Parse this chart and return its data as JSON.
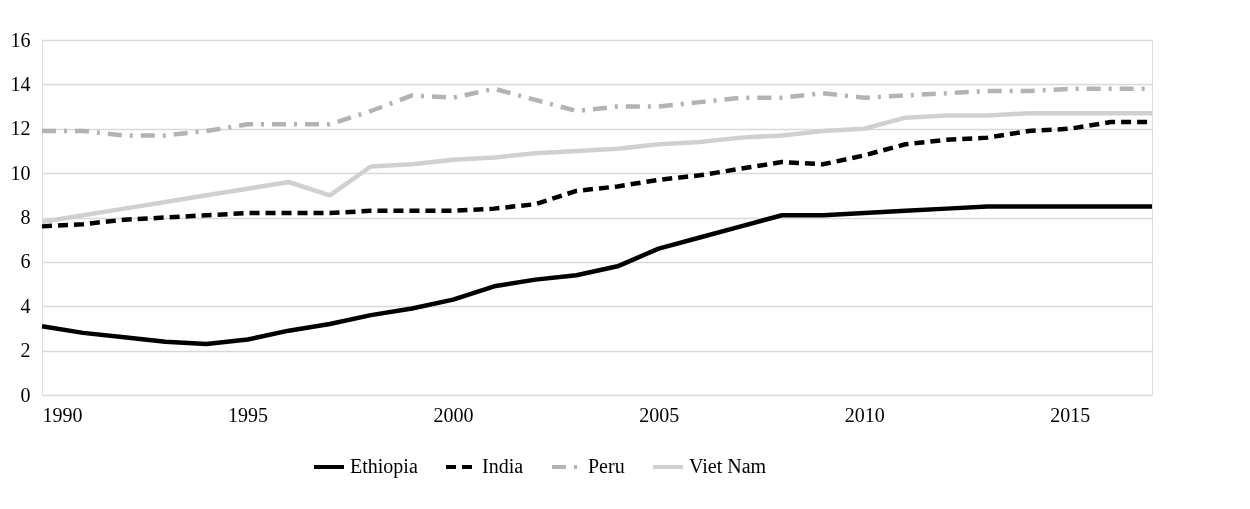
{
  "chart_data": {
    "type": "line",
    "x": [
      1990,
      1991,
      1992,
      1993,
      1994,
      1995,
      1996,
      1997,
      1998,
      1999,
      2000,
      2001,
      2002,
      2003,
      2004,
      2005,
      2006,
      2007,
      2008,
      2009,
      2010,
      2011,
      2012,
      2013,
      2014,
      2015,
      2016,
      2017
    ],
    "series": [
      {
        "name": "Ethiopia",
        "color": "#000000",
        "line_style": "solid",
        "values": [
          3.1,
          2.8,
          2.6,
          2.4,
          2.3,
          2.5,
          2.9,
          3.2,
          3.6,
          3.9,
          4.3,
          4.9,
          5.2,
          5.4,
          5.8,
          6.6,
          7.1,
          7.6,
          8.1,
          8.1,
          8.2,
          8.3,
          8.4,
          8.5,
          8.5,
          8.5,
          8.5,
          8.5
        ]
      },
      {
        "name": "India",
        "color": "#000000",
        "line_style": "dashed",
        "values": [
          7.6,
          7.7,
          7.9,
          8.0,
          8.1,
          8.2,
          8.2,
          8.2,
          8.3,
          8.3,
          8.3,
          8.4,
          8.6,
          9.2,
          9.4,
          9.7,
          9.9,
          10.2,
          10.5,
          10.4,
          10.8,
          11.3,
          11.5,
          11.6,
          11.9,
          12.0,
          12.3,
          12.3
        ]
      },
      {
        "name": "Peru",
        "color": "#b3b3b3",
        "line_style": "dashdot",
        "values": [
          11.9,
          11.9,
          11.7,
          11.7,
          11.9,
          12.2,
          12.2,
          12.2,
          12.8,
          13.5,
          13.4,
          13.8,
          13.3,
          12.8,
          13.0,
          13.0,
          13.2,
          13.4,
          13.4,
          13.6,
          13.4,
          13.5,
          13.6,
          13.7,
          13.7,
          13.8,
          13.8,
          13.8
        ]
      },
      {
        "name": "Viet Nam",
        "color": "#d0d0d0",
        "line_style": "solid",
        "values": [
          7.8,
          8.1,
          8.4,
          8.7,
          9.0,
          9.3,
          9.6,
          9.0,
          10.3,
          10.4,
          10.6,
          10.7,
          10.9,
          11.0,
          11.1,
          11.3,
          11.4,
          11.6,
          11.7,
          11.9,
          12.0,
          12.5,
          12.6,
          12.6,
          12.7,
          12.7,
          12.7,
          12.7
        ]
      }
    ],
    "xlim": [
      1990,
      2017
    ],
    "xticks": [
      1990,
      1995,
      2000,
      2005,
      2010,
      2015
    ],
    "ylim": [
      0,
      16
    ],
    "yticks": [
      0,
      2,
      4,
      6,
      8,
      10,
      12,
      14,
      16
    ],
    "grid": "y",
    "legend": "bottom",
    "marker": "none"
  }
}
